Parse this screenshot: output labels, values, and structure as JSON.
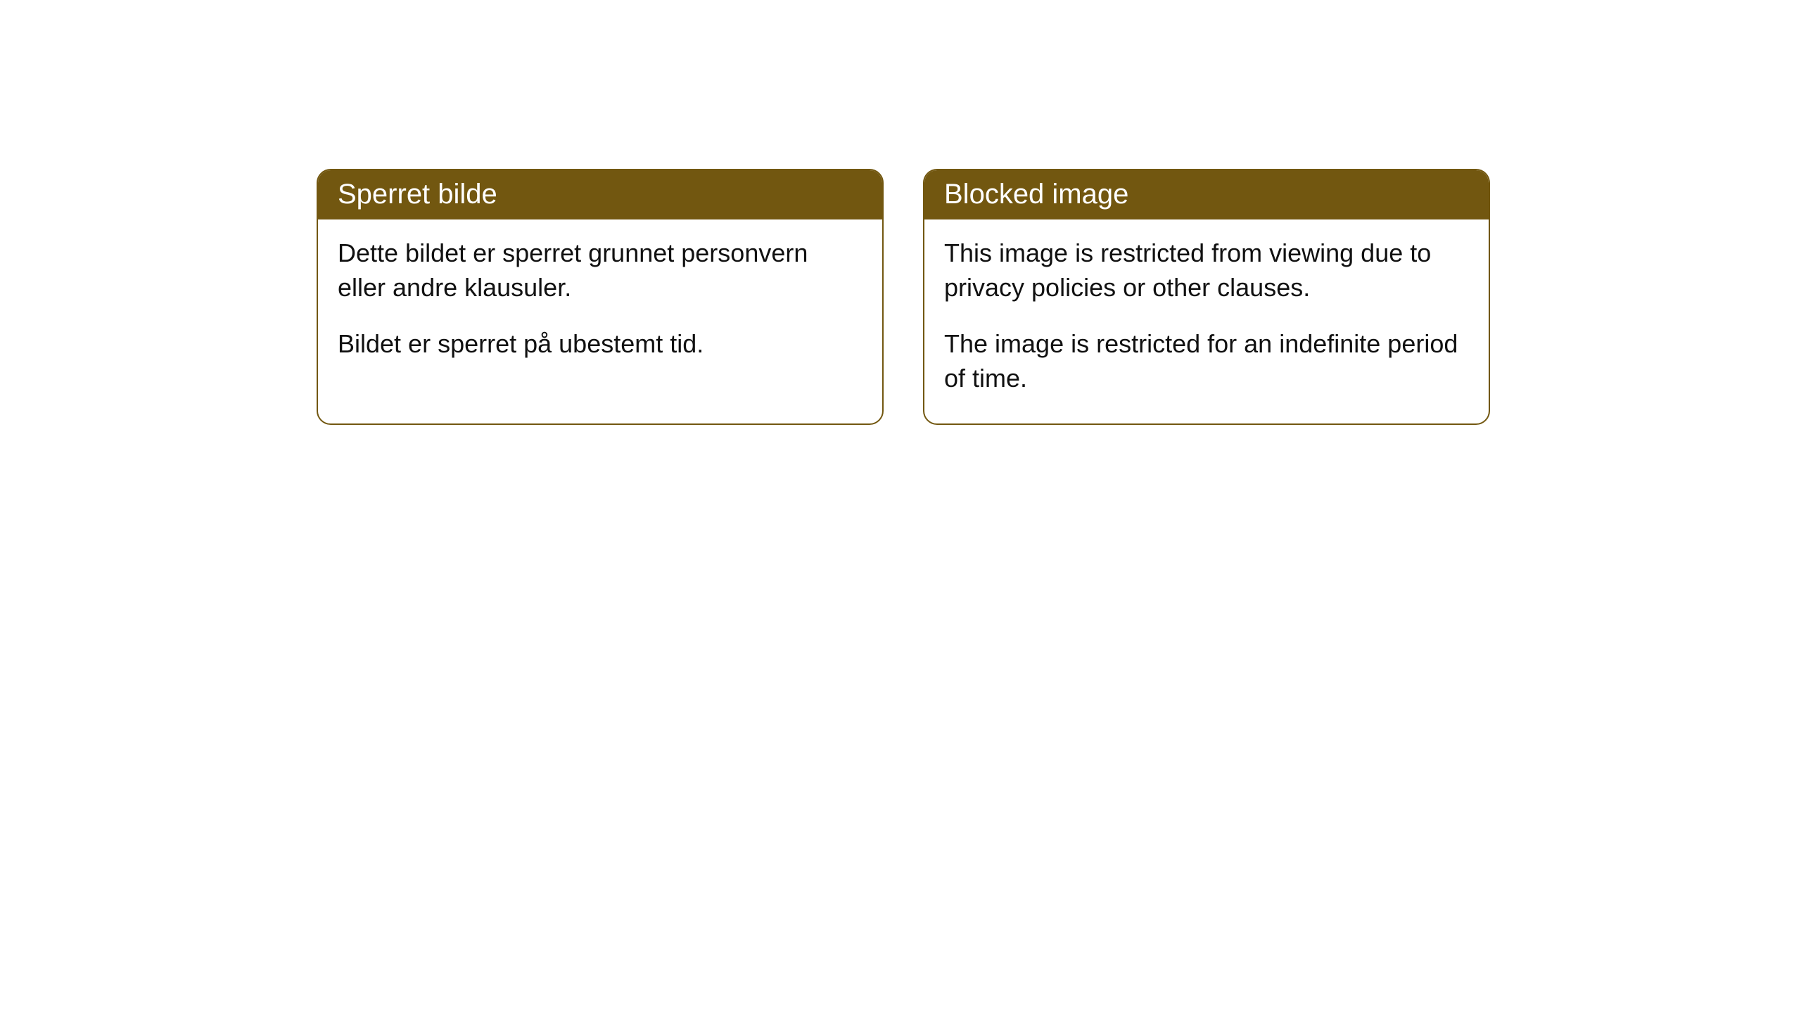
{
  "cards": [
    {
      "title": "Sperret bilde",
      "paragraph1": "Dette bildet er sperret grunnet personvern eller andre klausuler.",
      "paragraph2": "Bildet er sperret på ubestemt tid."
    },
    {
      "title": "Blocked image",
      "paragraph1": "This image is restricted from viewing due to privacy policies or other clauses.",
      "paragraph2": "The image is restricted for an indefinite period of time."
    }
  ],
  "style": {
    "header_background": "#725710",
    "header_text_color": "#ffffff",
    "border_color": "#725710",
    "body_text_color": "#111111",
    "background_color": "#ffffff",
    "border_radius": 20,
    "header_fontsize": 40,
    "body_fontsize": 36
  }
}
